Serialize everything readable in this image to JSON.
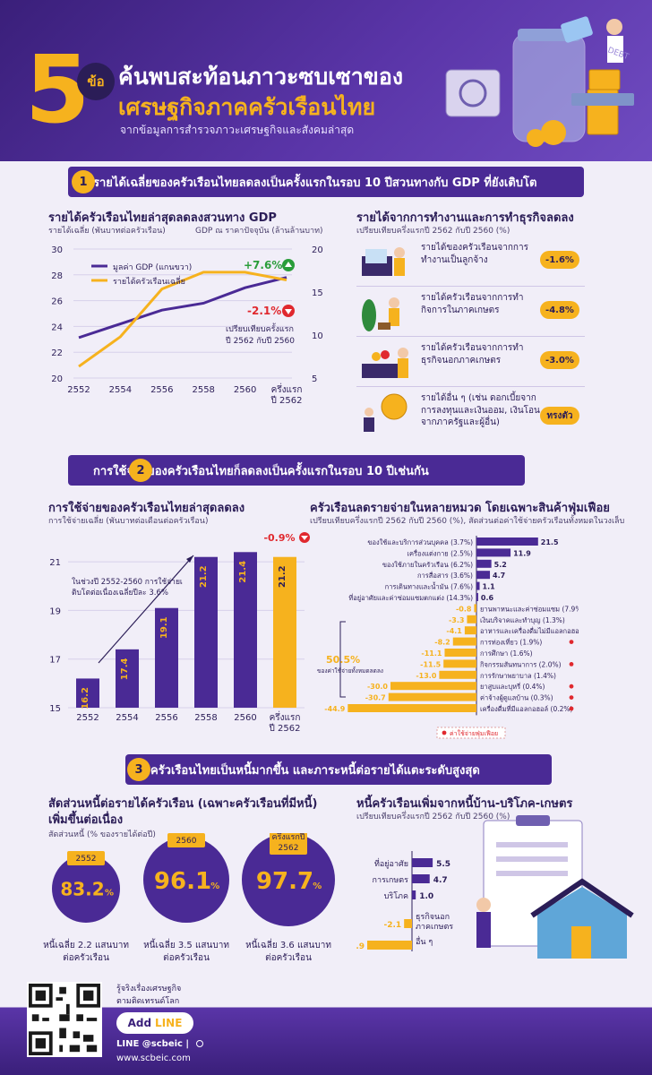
{
  "header": {
    "number": "5",
    "number_suffix": "ข้อ",
    "title_line1": "ค้นพบสะท้อนภาวะซบเซาของ",
    "title_line2": "เศรษฐกิจภาคครัวเรือนไทย",
    "subtitle": "จากข้อมูลการสำรวจภาวะเศรษฐกิจและสังคมล่าสุด",
    "illustration_text": "DEBT",
    "colors": {
      "accent": "#f6b21e",
      "brand": "#4a2a95",
      "negative": "#e0282e",
      "positive": "#2a9d3a"
    }
  },
  "section1": {
    "number": "1",
    "banner": "รายได้เฉลี่ยของครัวเรือนไทยลดลงเป็นครั้งแรกในรอบ 10 ปีสวนทางกับ GDP ที่ยังเติบโต",
    "left_title": "รายได้ครัวเรือนไทยล่าสุดลดลงสวนทาง GDP",
    "left_axis_left_label": "รายได้เฉลี่ย (พันบาทต่อครัวเรือน)",
    "left_axis_right_label": "GDP ณ ราคาปัจจุบัน (ล้านล้านบาท)",
    "gdp_change": "+7.6%",
    "income_change": "-2.1%",
    "compare_note": "เปรียบเทียบครั้งแรก\nปี 2562 กับปี 2560",
    "right_title": "รายได้จากการทำงานและการทำธุรกิจลดลง",
    "right_subtitle": "เปรียบเทียบครึ่งแรกปี 2562 กับปี 2560 (%)",
    "items": [
      {
        "label": "รายได้ของครัวเรือนจากการทำงานเป็นลูกจ้าง",
        "value": "-1.6%"
      },
      {
        "label": "รายได้ครัวเรือนจากการทำกิจการในภาคเกษตร",
        "value": "-4.8%"
      },
      {
        "label": "รายได้ครัวเรือนจากการทำธุรกิจนอกภาคเกษตร",
        "value": "-3.0%"
      },
      {
        "label": "รายได้อื่น ๆ (เช่น ดอกเบี้ยจากการลงทุนและเงินออม, เงินโอนจากภาครัฐและผู้อื่น)",
        "value": "ทรงตัว"
      }
    ]
  },
  "section2": {
    "number": "2",
    "banner": "การใช้จ่ายของครัวเรือนไทยก็ลดลงเป็นครั้งแรกในรอบ 10 ปีเช่นกัน",
    "left_title": "การใช้จ่ายของครัวเรือนไทยล่าสุดลดลง",
    "left_subtitle": "การใช้จ่ายเฉลี่ย (พันบาทต่อเดือนต่อครัวเรือน)",
    "growth_note": "ในช่วงปี 2552-2560 การใช้จ่ายเติบโตต่อเนื่องเฉลี่ยปีละ 3.6%",
    "change": "-0.9%",
    "right_title": "ครัวเรือนลดรายจ่ายในหลายหมวด โดยเฉพาะสินค้าฟุ่มเฟือย",
    "right_subtitle": "เปรียบเทียบครึ่งแรกปี 2562 กับปี 2560 (%), สัดส่วนต่อค่าใช้จ่ายครัวเรือนทั้งหมดในวงเล็บ",
    "share_label": "50.5%",
    "share_desc": "ของค่าใช้จ่ายทั้งหมดลดลง",
    "legend_luxury": "ค่าใช้จ่ายฟุ่มเฟือย"
  },
  "section3": {
    "number": "3",
    "banner": "ครัวเรือนไทยเป็นหนี้มากขึ้น และภาระหนี้ต่อรายได้แตะระดับสูงสุด",
    "left_title_1": "สัดส่วนหนี้ต่อรายได้ครัวเรือน (เฉพาะครัวเรือนที่มีหนี้)",
    "left_title_2": "เพิ่มขึ้นต่อเนื่อง",
    "left_subtitle": "สัดส่วนหนี้ (% ของรายได้ต่อปี)",
    "circles": [
      {
        "year": "2552",
        "value": "83.2",
        "pct": "%",
        "line1": "หนี้เฉลี่ย 2.2 แสนบาท",
        "line2": "ต่อครัวเรือน"
      },
      {
        "year": "2560",
        "value": "96.1",
        "pct": "%",
        "line1": "หนี้เฉลี่ย 3.5 แสนบาท",
        "line2": "ต่อครัวเรือน"
      },
      {
        "year": "ครึ่งแรกปี\n2562",
        "value": "97.7",
        "pct": "%",
        "line1": "หนี้เฉลี่ย 3.6 แสนบาท",
        "line2": "ต่อครัวเรือน"
      }
    ],
    "right_title": "หนี้ครัวเรือนเพิ่มจากหนี้บ้าน-บริโภค-เกษตร",
    "right_subtitle": "เปรียบเทียบครึ่งแรกปี 2562 กับปี 2560 (%)"
  },
  "footer": {
    "tagline_1": "รู้จริงเรื่องเศรษฐกิจ",
    "tagline_2": "ตามติดเทรนด์โลก",
    "add_label": "Add",
    "line_label": "LINE",
    "line_id": "LINE @scbeic |",
    "website": "www.scbeic.com"
  },
  "chart_data": [
    {
      "type": "line",
      "title": "รายได้ครัวเรือนไทยล่าสุดลดลงสวนทาง GDP",
      "categories": [
        "2552",
        "2554",
        "2556",
        "2558",
        "2560",
        "ครึ่งแรก\nปี 2562"
      ],
      "series": [
        {
          "name": "มูลค่า GDP (แกนขวา)",
          "axis": "right",
          "values": [
            9.7,
            11.3,
            12.9,
            13.7,
            15.5,
            16.7
          ]
        },
        {
          "name": "รายได้ครัวเรือนเฉลี่ย",
          "axis": "left",
          "values": [
            20.9,
            23.2,
            26.9,
            28.2,
            28.2,
            27.6
          ]
        }
      ],
      "ylim_left": [
        20,
        30
      ],
      "yticks_left": [
        20,
        22,
        24,
        26,
        28,
        30
      ],
      "ylim_right": [
        5,
        20
      ],
      "yticks_right": [
        5,
        10,
        15,
        20
      ]
    },
    {
      "type": "bar",
      "title": "การใช้จ่ายของครัวเรือนไทยล่าสุดลดลง",
      "categories": [
        "2552",
        "2554",
        "2556",
        "2558",
        "2560",
        "ครึ่งแรก\nปี 2562"
      ],
      "values": [
        16.2,
        17.4,
        19.1,
        21.2,
        21.4,
        21.2
      ],
      "labels": [
        "16.2",
        "17.4",
        "19.1",
        "21.2",
        "21.4",
        "21.2"
      ],
      "ylim": [
        15,
        22
      ],
      "yticks": [
        15,
        17,
        19,
        21
      ]
    },
    {
      "type": "bar",
      "title": "ครัวเรือนลดรายจ่ายในหลายหมวด โดยเฉพาะสินค้าฟุ่มเฟือย",
      "orientation": "horizontal",
      "items": [
        {
          "label": "ของใช้และบริการส่วนบุคคล (3.7%)",
          "value": 21.5,
          "text": "21.5",
          "luxury": false
        },
        {
          "label": "เครื่องแต่งกาย (2.5%)",
          "value": 11.9,
          "text": "11.9",
          "luxury": false
        },
        {
          "label": "ของใช้ภายในครัวเรือน (6.2%)",
          "value": 5.2,
          "text": "5.2",
          "luxury": false
        },
        {
          "label": "การสื่อสาร (3.6%)",
          "value": 4.7,
          "text": "4.7",
          "luxury": false
        },
        {
          "label": "การเดินทางและน้ำมัน (7.6%)",
          "value": 1.1,
          "text": "1.1",
          "luxury": false
        },
        {
          "label": "ที่อยู่อาศัยและค่าซ่อมแซมตกแต่ง (14.3%)",
          "value": 0.6,
          "text": "0.6",
          "luxury": false
        },
        {
          "label": "ยานพาหนะและค่าซ่อมแซม (7.9%)",
          "value": -0.8,
          "text": "-0.8",
          "luxury": false
        },
        {
          "label": "เงินบริจาคและทำบุญ (1.3%)",
          "value": -3.3,
          "text": "-3.3",
          "luxury": false
        },
        {
          "label": "อาหารและเครื่องดื่มไม่มีแอลกอฮอล์ (33.2%)",
          "value": -4.1,
          "text": "-4.1",
          "luxury": false
        },
        {
          "label": "การท่องเที่ยว (1.9%)",
          "value": -8.2,
          "text": "-8.2",
          "luxury": true
        },
        {
          "label": "การศึกษา (1.6%)",
          "value": -11.1,
          "text": "-11.1",
          "luxury": false
        },
        {
          "label": "กิจกรรมสันทนาการ (2.0%)",
          "value": -11.5,
          "text": "-11.5",
          "luxury": true
        },
        {
          "label": "การรักษาพยาบาล (1.4%)",
          "value": -13.0,
          "text": "-13.0",
          "luxury": false
        },
        {
          "label": "ยาสูบและบุหรี่ (0.4%)",
          "value": -30.0,
          "text": "-30.0",
          "luxury": true
        },
        {
          "label": "ค่าจ้างผู้ดูแลบ้าน (0.3%)",
          "value": -30.7,
          "text": "-30.7",
          "luxury": true
        },
        {
          "label": "เครื่องดื่มที่มีแอลกอฮอล์ (0.2%)",
          "value": -44.9,
          "text": "-44.9",
          "luxury": true
        }
      ]
    },
    {
      "type": "bar",
      "title": "หนี้ครัวเรือนเพิ่มจากหนี้บ้าน-บริโภค-เกษตร",
      "orientation": "horizontal",
      "items": [
        {
          "label": "ที่อยู่อาศัย",
          "value": 5.5,
          "text": "5.5"
        },
        {
          "label": "การเกษตร",
          "value": 4.7,
          "text": "4.7"
        },
        {
          "label": "บริโภค",
          "value": 1.0,
          "text": "1.0"
        },
        {
          "label": "ธุรกิจนอก\nภาคเกษตร",
          "value": -2.1,
          "text": "-2.1"
        },
        {
          "label": "อื่น ๆ",
          "value": -11.9,
          "text": "-11.9"
        }
      ]
    }
  ]
}
